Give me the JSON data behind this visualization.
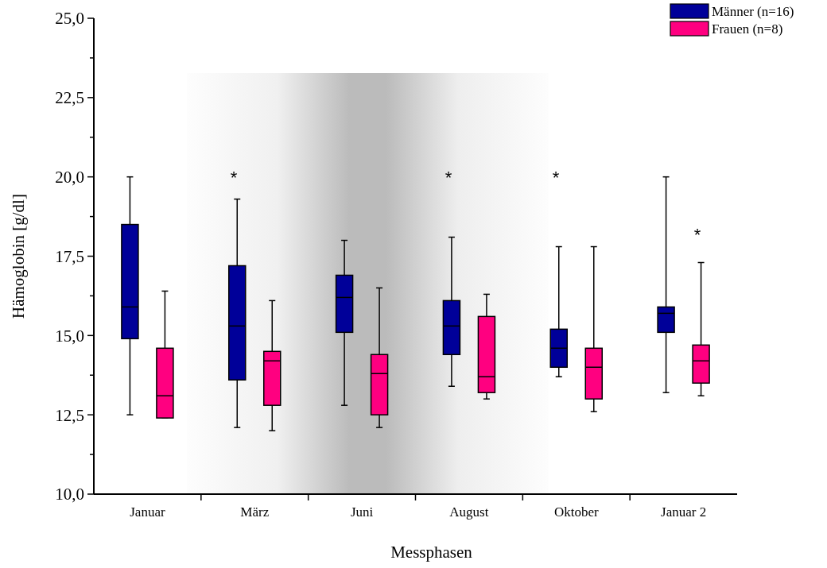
{
  "chart_data": {
    "type": "box",
    "xlabel": "Messphasen",
    "ylabel": "Hämoglobin [g/dl]",
    "categories": [
      "Januar",
      "März",
      "Juni",
      "August",
      "Oktober",
      "Januar 2"
    ],
    "ylim": [
      10,
      25
    ],
    "yticks": [
      {
        "value": 10,
        "label": "10,0"
      },
      {
        "value": 11.25,
        "label": null
      },
      {
        "value": 12.5,
        "label": "12,5"
      },
      {
        "value": 13.75,
        "label": null
      },
      {
        "value": 15,
        "label": "15,0"
      },
      {
        "value": 16.25,
        "label": null
      },
      {
        "value": 17.5,
        "label": "17,5"
      },
      {
        "value": 18.75,
        "label": null
      },
      {
        "value": 20,
        "label": "20,0"
      },
      {
        "value": 21.25,
        "label": null
      },
      {
        "value": 22.5,
        "label": "22,5"
      },
      {
        "value": 23.75,
        "label": null
      },
      {
        "value": 25,
        "label": "25,0"
      }
    ],
    "grid": false,
    "legend": "top right",
    "series": [
      {
        "name": "Männer (n=16)",
        "color": "#000099",
        "boxes": [
          {
            "low": 12.5,
            "q1": 14.9,
            "median": 15.9,
            "q3": 18.5,
            "high": 20.0
          },
          {
            "low": 12.1,
            "q1": 13.6,
            "median": 15.3,
            "q3": 17.2,
            "high": 19.3
          },
          {
            "low": 12.8,
            "q1": 15.1,
            "median": 16.2,
            "q3": 16.9,
            "high": 18.0
          },
          {
            "low": 13.4,
            "q1": 14.4,
            "median": 15.3,
            "q3": 16.1,
            "high": 18.1
          },
          {
            "low": 13.7,
            "q1": 14.0,
            "median": 14.6,
            "q3": 15.2,
            "high": 17.8
          },
          {
            "low": 13.2,
            "q1": 15.1,
            "median": 15.7,
            "q3": 15.9,
            "high": 20.0
          }
        ]
      },
      {
        "name": "Frauen (n=8)",
        "color": "#ff0080",
        "boxes": [
          {
            "low": 12.4,
            "q1": 12.4,
            "median": 13.1,
            "q3": 14.6,
            "high": 16.4
          },
          {
            "low": 12.0,
            "q1": 12.8,
            "median": 14.2,
            "q3": 14.5,
            "high": 16.1
          },
          {
            "low": 12.1,
            "q1": 12.5,
            "median": 13.8,
            "q3": 14.4,
            "high": 16.5
          },
          {
            "low": 13.0,
            "q1": 13.2,
            "median": 13.7,
            "q3": 15.6,
            "high": 16.3
          },
          {
            "low": 12.6,
            "q1": 13.0,
            "median": 14.0,
            "q3": 14.6,
            "high": 17.8
          },
          {
            "low": 13.1,
            "q1": 13.5,
            "median": 14.2,
            "q3": 14.7,
            "high": 17.3
          }
        ]
      }
    ],
    "annotations": [
      "*",
      "*",
      "*",
      "*"
    ]
  }
}
